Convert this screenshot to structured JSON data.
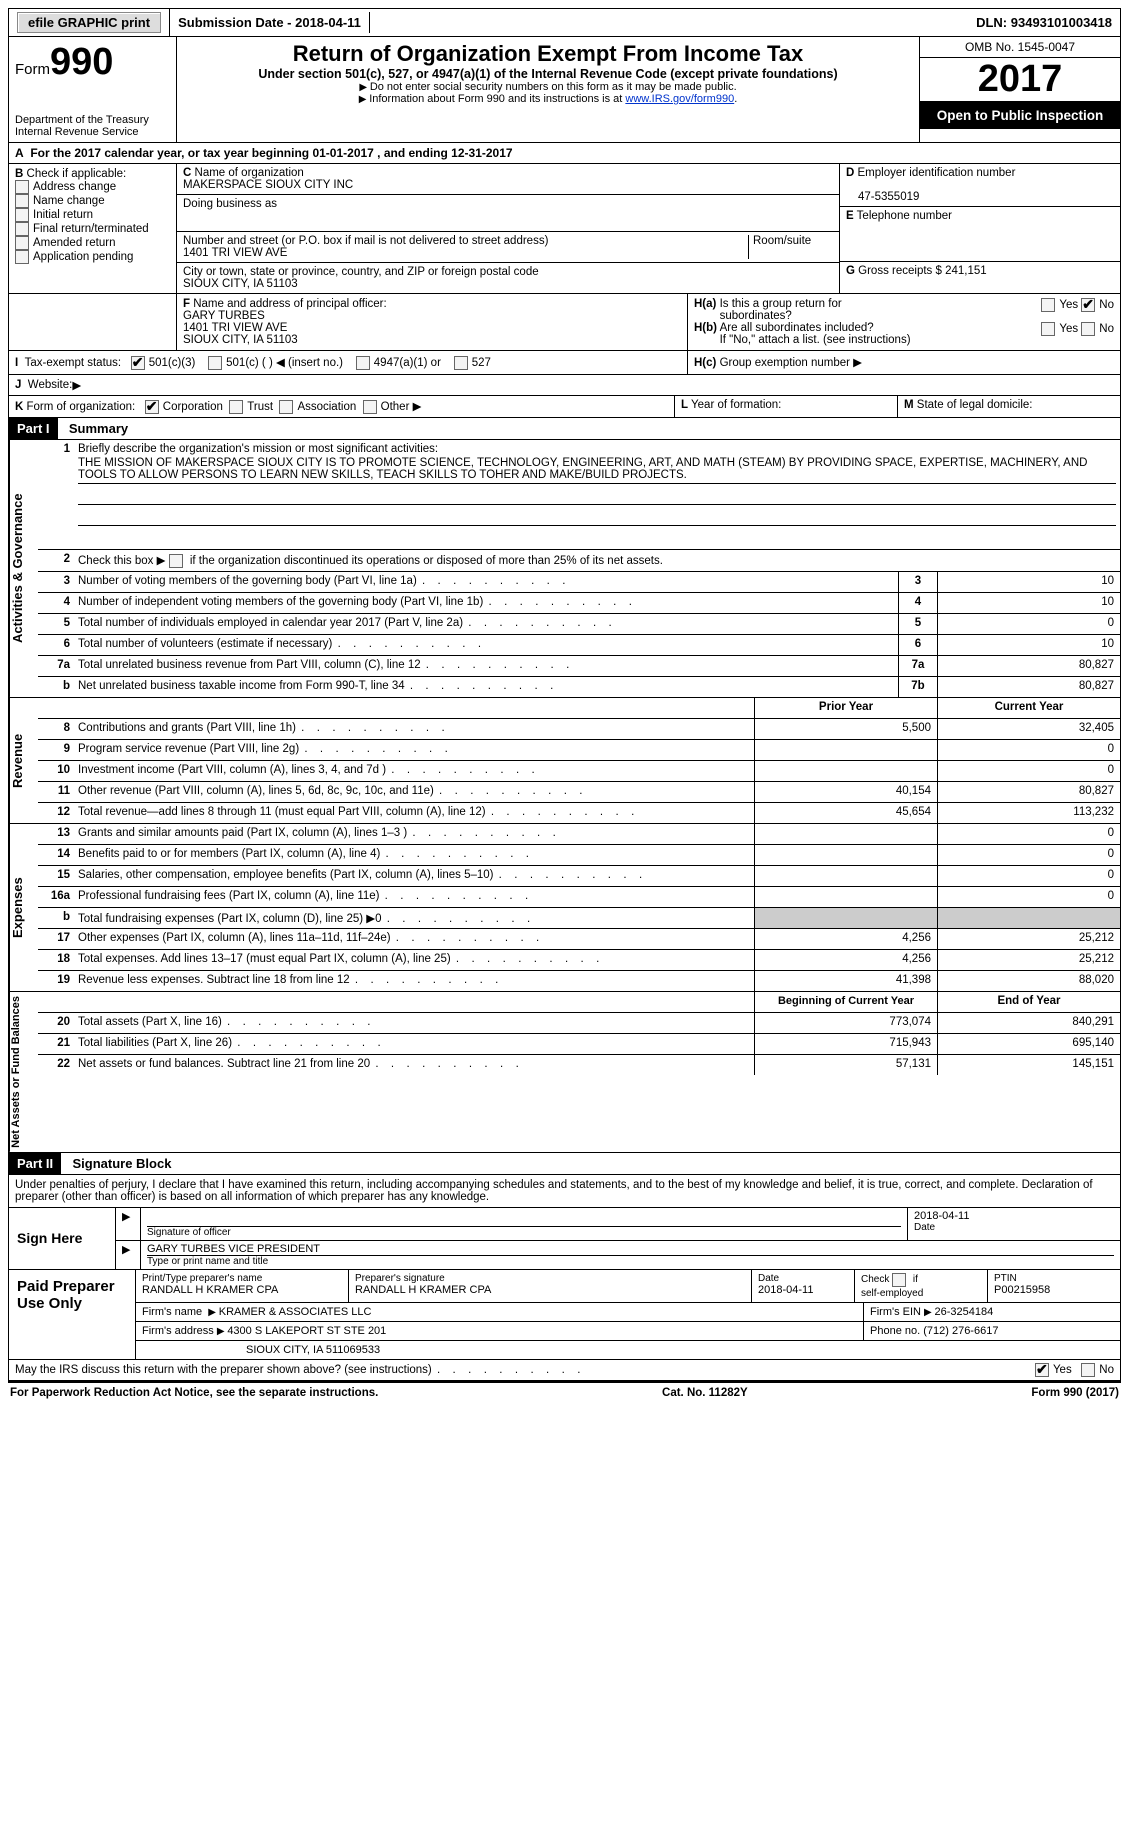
{
  "topbar": {
    "efile": "efile GRAPHIC print",
    "submission_label": "Submission Date - ",
    "submission_date": "2018-04-11",
    "dln_label": "DLN: ",
    "dln": "93493101003418"
  },
  "header": {
    "form_word": "Form",
    "form_num": "990",
    "dept": "Department of the Treasury\nInternal Revenue Service",
    "title": "Return of Organization Exempt From Income Tax",
    "subtitle": "Under section 501(c), 527, or 4947(a)(1) of the Internal Revenue Code (except private foundations)",
    "instr1": "Do not enter social security numbers on this form as it may be made public.",
    "instr2_pre": "Information about Form 990 and its instructions is at ",
    "instr2_link": "www.IRS.gov/form990",
    "omb": "OMB No. 1545-0047",
    "year": "2017",
    "open": "Open to Public Inspection"
  },
  "line_a": "For the 2017 calendar year, or tax year beginning 01-01-2017   , and ending 12-31-2017",
  "box_b": {
    "title": "Check if applicable:",
    "opts": [
      "Address change",
      "Name change",
      "Initial return",
      "Final return/terminated",
      "Amended return",
      "Application pending"
    ]
  },
  "box_c": {
    "name_label": "Name of organization",
    "name": "MAKERSPACE SIOUX CITY INC",
    "dba_label": "Doing business as",
    "dba": "",
    "street_label": "Number and street (or P.O. box if mail is not delivered to street address)",
    "room_label": "Room/suite",
    "street": "1401 TRI VIEW AVE",
    "city_label": "City or town, state or province, country, and ZIP or foreign postal code",
    "city": "SIOUX CITY, IA  51103"
  },
  "box_d": {
    "ein_label": "Employer identification number",
    "ein": "47-5355019",
    "tel_label": "Telephone number",
    "tel": "",
    "gross_label": "Gross receipts $ ",
    "gross": "241,151"
  },
  "box_f": {
    "label": "Name and address of principal officer:",
    "name": "GARY TURBES",
    "addr1": "1401 TRI VIEW AVE",
    "addr2": "SIOUX CITY, IA  51103"
  },
  "box_h": {
    "a_label": "Is this a group return for",
    "a_label2": "subordinates?",
    "a_yes": "Yes",
    "a_no": "No",
    "b_label": "Are all subordinates included?",
    "b_note": "If \"No,\" attach a list. (see instructions)",
    "c_label": "Group exemption number"
  },
  "line_i": {
    "label": "Tax-exempt status:",
    "o1": "501(c)(3)",
    "o2": "501(c) (   )",
    "insert": "(insert no.)",
    "o3": "4947(a)(1) or",
    "o4": "527"
  },
  "line_j": {
    "label": "Website:"
  },
  "line_k": {
    "label": "Form of organization:",
    "opts": [
      "Corporation",
      "Trust",
      "Association",
      "Other"
    ]
  },
  "line_l": "Year of formation:",
  "line_m": "State of legal domicile:",
  "part1": {
    "tag": "Part I",
    "title": "Summary"
  },
  "mission": {
    "label": "Briefly describe the organization's mission or most significant activities:",
    "text": "THE MISSION OF MAKERSPACE SIOUX CITY IS TO PROMOTE SCIENCE, TECHNOLOGY, ENGINEERING, ART, AND MATH (STEAM) BY PROVIDING SPACE, EXPERTISE, MACHINERY, AND TOOLS TO ALLOW PERSONS TO LEARN NEW SKILLS, TEACH SKILLS TO TOHER AND MAKE/BUILD PROJECTS."
  },
  "line2": "Check this box ▶        if the organization discontinued its operations or disposed of more than 25% of its net assets.",
  "gov_section": "Activities & Governance",
  "rev_section": "Revenue",
  "exp_section": "Expenses",
  "net_section": "Net Assets or Fund Balances",
  "rows_single": [
    {
      "n": "3",
      "label": "Number of voting members of the governing body (Part VI, line 1a)",
      "box": "3",
      "val": "10"
    },
    {
      "n": "4",
      "label": "Number of independent voting members of the governing body (Part VI, line 1b)",
      "box": "4",
      "val": "10"
    },
    {
      "n": "5",
      "label": "Total number of individuals employed in calendar year 2017 (Part V, line 2a)",
      "box": "5",
      "val": "0"
    },
    {
      "n": "6",
      "label": "Total number of volunteers (estimate if necessary)",
      "box": "6",
      "val": "10"
    },
    {
      "n": "7a",
      "label": "Total unrelated business revenue from Part VIII, column (C), line 12",
      "box": "7a",
      "val": "80,827"
    },
    {
      "n": "b",
      "label": "Net unrelated business taxable income from Form 990-T, line 34",
      "box": "7b",
      "val": "80,827"
    }
  ],
  "col_heads": {
    "prior": "Prior Year",
    "current": "Current Year"
  },
  "rows_rev": [
    {
      "n": "8",
      "label": "Contributions and grants (Part VIII, line 1h)",
      "prior": "5,500",
      "cur": "32,405"
    },
    {
      "n": "9",
      "label": "Program service revenue (Part VIII, line 2g)",
      "prior": "",
      "cur": "0"
    },
    {
      "n": "10",
      "label": "Investment income (Part VIII, column (A), lines 3, 4, and 7d )",
      "prior": "",
      "cur": "0"
    },
    {
      "n": "11",
      "label": "Other revenue (Part VIII, column (A), lines 5, 6d, 8c, 9c, 10c, and 11e)",
      "prior": "40,154",
      "cur": "80,827"
    },
    {
      "n": "12",
      "label": "Total revenue—add lines 8 through 11 (must equal Part VIII, column (A), line 12)",
      "prior": "45,654",
      "cur": "113,232"
    }
  ],
  "rows_exp": [
    {
      "n": "13",
      "label": "Grants and similar amounts paid (Part IX, column (A), lines 1–3 )",
      "prior": "",
      "cur": "0"
    },
    {
      "n": "14",
      "label": "Benefits paid to or for members (Part IX, column (A), line 4)",
      "prior": "",
      "cur": "0"
    },
    {
      "n": "15",
      "label": "Salaries, other compensation, employee benefits (Part IX, column (A), lines 5–10)",
      "prior": "",
      "cur": "0"
    },
    {
      "n": "16a",
      "label": "Professional fundraising fees (Part IX, column (A), line 11e)",
      "prior": "",
      "cur": "0"
    },
    {
      "n": "b",
      "label": "Total fundraising expenses (Part IX, column (D), line 25) ▶0",
      "prior": "SHADE",
      "cur": "SHADE"
    },
    {
      "n": "17",
      "label": "Other expenses (Part IX, column (A), lines 11a–11d, 11f–24e)",
      "prior": "4,256",
      "cur": "25,212"
    },
    {
      "n": "18",
      "label": "Total expenses. Add lines 13–17 (must equal Part IX, column (A), line 25)",
      "prior": "4,256",
      "cur": "25,212"
    },
    {
      "n": "19",
      "label": "Revenue less expenses. Subtract line 18 from line 12",
      "prior": "41,398",
      "cur": "88,020"
    }
  ],
  "col_heads2": {
    "prior": "Beginning of Current Year",
    "current": "End of Year"
  },
  "rows_net": [
    {
      "n": "20",
      "label": "Total assets (Part X, line 16)",
      "prior": "773,074",
      "cur": "840,291"
    },
    {
      "n": "21",
      "label": "Total liabilities (Part X, line 26)",
      "prior": "715,943",
      "cur": "695,140"
    },
    {
      "n": "22",
      "label": "Net assets or fund balances. Subtract line 21 from line 20",
      "prior": "57,131",
      "cur": "145,151"
    }
  ],
  "part2": {
    "tag": "Part II",
    "title": "Signature Block"
  },
  "perjury": "Under penalties of perjury, I declare that I have examined this return, including accompanying schedules and statements, and to the best of my knowledge and belief, it is true, correct, and complete. Declaration of preparer (other than officer) is based on all information of which preparer has any knowledge.",
  "sign": {
    "here": "Sign Here",
    "sig_label": "Signature of officer",
    "date_label": "Date",
    "date": "2018-04-11",
    "name_label": "Type or print name and title",
    "name": "GARY TURBES  VICE PRESIDENT"
  },
  "paid": {
    "title": "Paid Preparer Use Only",
    "r1": {
      "c1_label": "Print/Type preparer's name",
      "c1": "RANDALL H KRAMER CPA",
      "c2_label": "Preparer's signature",
      "c2": "RANDALL H KRAMER CPA",
      "c3_label": "Date",
      "c3": "2018-04-11",
      "c4_label": "Check        if self-employed",
      "c5_label": "PTIN",
      "c5": "P00215958"
    },
    "r2": {
      "firm_label": "Firm's name",
      "firm": "KRAMER & ASSOCIATES LLC",
      "ein_label": "Firm's EIN",
      "ein": "26-3254184"
    },
    "r3": {
      "addr_label": "Firm's address",
      "addr": "4300 S LAKEPORT ST STE 201",
      "phone_label": "Phone no.",
      "phone": "(712) 276-6617"
    },
    "r4": {
      "addr2": "SIOUX CITY, IA  511069533"
    }
  },
  "discuss": {
    "q": "May the IRS discuss this return with the preparer shown above? (see instructions)",
    "yes": "Yes",
    "no": "No"
  },
  "footer": {
    "left": "For Paperwork Reduction Act Notice, see the separate instructions.",
    "mid": "Cat. No. 11282Y",
    "right": "Form 990 (2017)"
  }
}
